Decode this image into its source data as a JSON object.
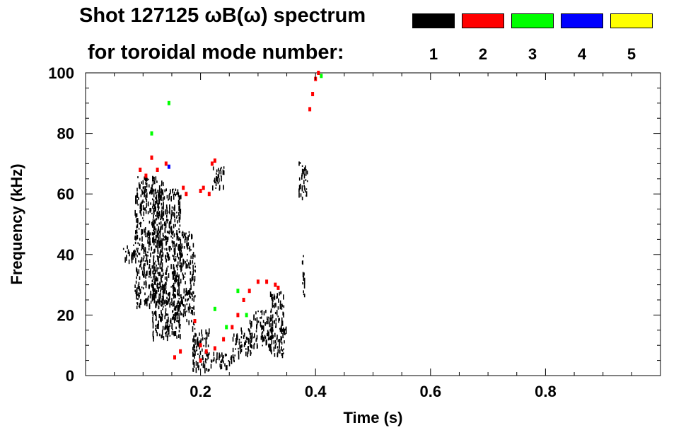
{
  "title": {
    "line1": "Shot 127125 ωB(ω) spectrum",
    "line2": "for toroidal mode number:"
  },
  "legend": [
    {
      "label": "1",
      "color": "#000000"
    },
    {
      "label": "2",
      "color": "#ff0000"
    },
    {
      "label": "3",
      "color": "#00ff00"
    },
    {
      "label": "4",
      "color": "#0000ff"
    },
    {
      "label": "5",
      "color": "#ffff00"
    }
  ],
  "chart_data": {
    "type": "scatter",
    "title": "Shot 127125 ωB(ω) spectrum",
    "xlabel": "Time (s)",
    "ylabel": "Frequency (kHz)",
    "xlim": [
      0.0,
      1.0
    ],
    "ylim": [
      0,
      100
    ],
    "xticks": [
      0.2,
      0.4,
      0.6,
      0.8
    ],
    "xtick_labels": [
      "0.2",
      "0.4",
      "0.6",
      "0.8"
    ],
    "yticks": [
      0,
      20,
      40,
      60,
      80,
      100
    ],
    "ytick_labels": [
      "0",
      "20",
      "40",
      "60",
      "80",
      "100"
    ],
    "grid": false,
    "legend_position": "top",
    "series": [
      {
        "name": "1",
        "color": "#000000",
        "regions": [
          {
            "t": [
              0.065,
              0.085
            ],
            "f": [
              38,
              44
            ]
          },
          {
            "t": [
              0.085,
              0.135
            ],
            "f": [
              23,
              66
            ]
          },
          {
            "t": [
              0.115,
              0.165
            ],
            "f": [
              13,
              62
            ]
          },
          {
            "t": [
              0.15,
              0.185
            ],
            "f": [
              18,
              48
            ]
          },
          {
            "t": [
              0.185,
              0.215
            ],
            "f": [
              2,
              16
            ]
          },
          {
            "t": [
              0.21,
              0.26
            ],
            "f": [
              3,
              8
            ]
          },
          {
            "t": [
              0.255,
              0.29
            ],
            "f": [
              7,
              16
            ]
          },
          {
            "t": [
              0.285,
              0.325
            ],
            "f": [
              10,
              22
            ]
          },
          {
            "t": [
              0.32,
              0.345
            ],
            "f": [
              7,
              28
            ]
          },
          {
            "t": [
              0.335,
              0.35
            ],
            "f": [
              14,
              17
            ]
          },
          {
            "t": [
              0.22,
              0.24
            ],
            "f": [
              62,
              70
            ]
          },
          {
            "t": [
              0.37,
              0.385
            ],
            "f": [
              59,
              71
            ]
          },
          {
            "t": [
              0.375,
              0.38
            ],
            "f": [
              27,
              40
            ]
          },
          {
            "t": [
              0.185,
              0.19
            ],
            "f": [
              5,
              45
            ]
          }
        ]
      },
      {
        "name": "2",
        "color": "#ff0000",
        "points": [
          [
            0.19,
            18
          ],
          [
            0.2,
            10
          ],
          [
            0.21,
            8
          ],
          [
            0.225,
            9
          ],
          [
            0.24,
            12
          ],
          [
            0.255,
            16
          ],
          [
            0.265,
            20
          ],
          [
            0.275,
            25
          ],
          [
            0.285,
            28
          ],
          [
            0.3,
            31
          ],
          [
            0.315,
            31
          ],
          [
            0.33,
            30
          ],
          [
            0.335,
            29
          ],
          [
            0.095,
            68
          ],
          [
            0.105,
            66
          ],
          [
            0.115,
            72
          ],
          [
            0.125,
            68
          ],
          [
            0.14,
            70
          ],
          [
            0.2,
            61
          ],
          [
            0.205,
            62
          ],
          [
            0.215,
            60
          ],
          [
            0.22,
            70
          ],
          [
            0.225,
            71
          ],
          [
            0.39,
            88
          ],
          [
            0.395,
            93
          ],
          [
            0.4,
            98
          ],
          [
            0.405,
            100
          ],
          [
            0.17,
            62
          ],
          [
            0.175,
            60
          ],
          [
            0.155,
            6
          ],
          [
            0.165,
            8
          ],
          [
            0.2,
            5
          ]
        ]
      },
      {
        "name": "3",
        "color": "#00ff00",
        "points": [
          [
            0.115,
            80
          ],
          [
            0.145,
            90
          ],
          [
            0.225,
            22
          ],
          [
            0.245,
            16
          ],
          [
            0.265,
            28
          ],
          [
            0.28,
            20
          ],
          [
            0.41,
            99
          ]
        ]
      },
      {
        "name": "4",
        "color": "#0000ff",
        "points": [
          [
            0.145,
            69
          ]
        ]
      },
      {
        "name": "5",
        "color": "#ffff00",
        "points": []
      }
    ]
  }
}
